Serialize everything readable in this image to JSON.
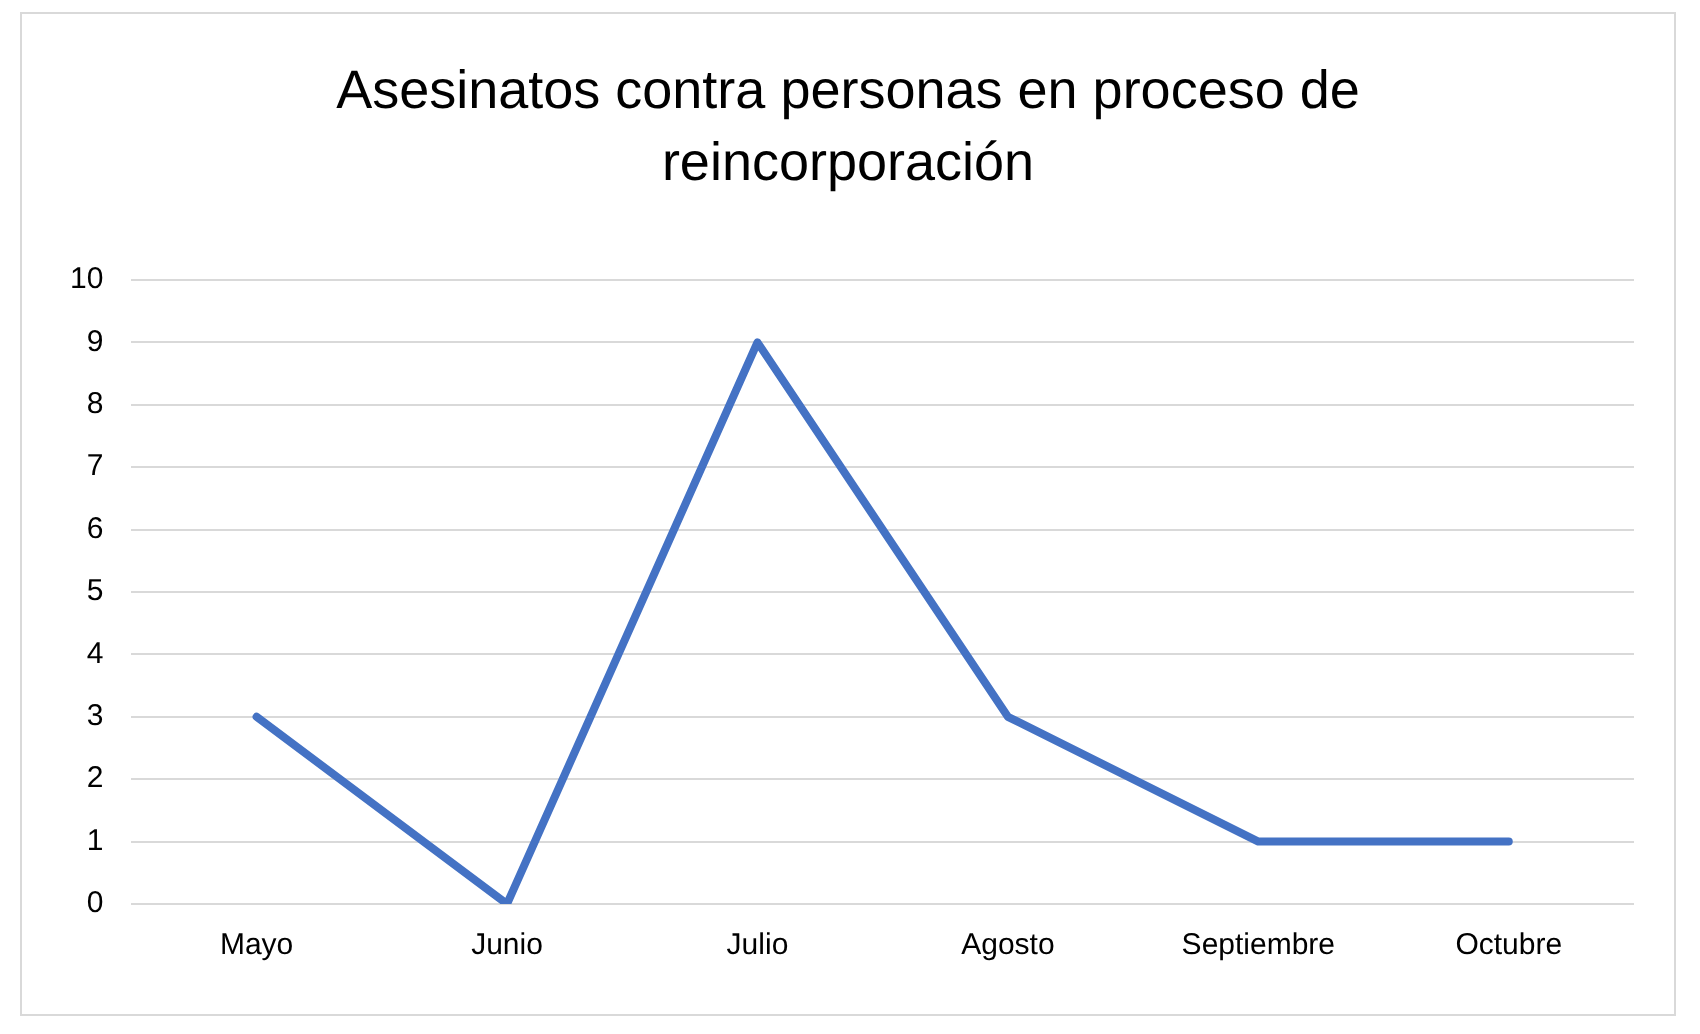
{
  "chart_data": {
    "type": "line",
    "title": "Asesinatos contra personas en proceso de reincorporación",
    "categories": [
      "Mayo",
      "Junio",
      "Julio",
      "Agosto",
      "Septiembre",
      "Octubre"
    ],
    "series": [
      {
        "color": "#4472c4",
        "values": [
          3,
          0,
          9,
          3,
          1,
          1
        ]
      }
    ],
    "ylim": [
      0,
      10
    ],
    "yticks": [
      0,
      1,
      2,
      3,
      4,
      5,
      6,
      7,
      8,
      9,
      10
    ],
    "grid": "y",
    "legend": false,
    "marker": "none",
    "line_style": "solid"
  }
}
